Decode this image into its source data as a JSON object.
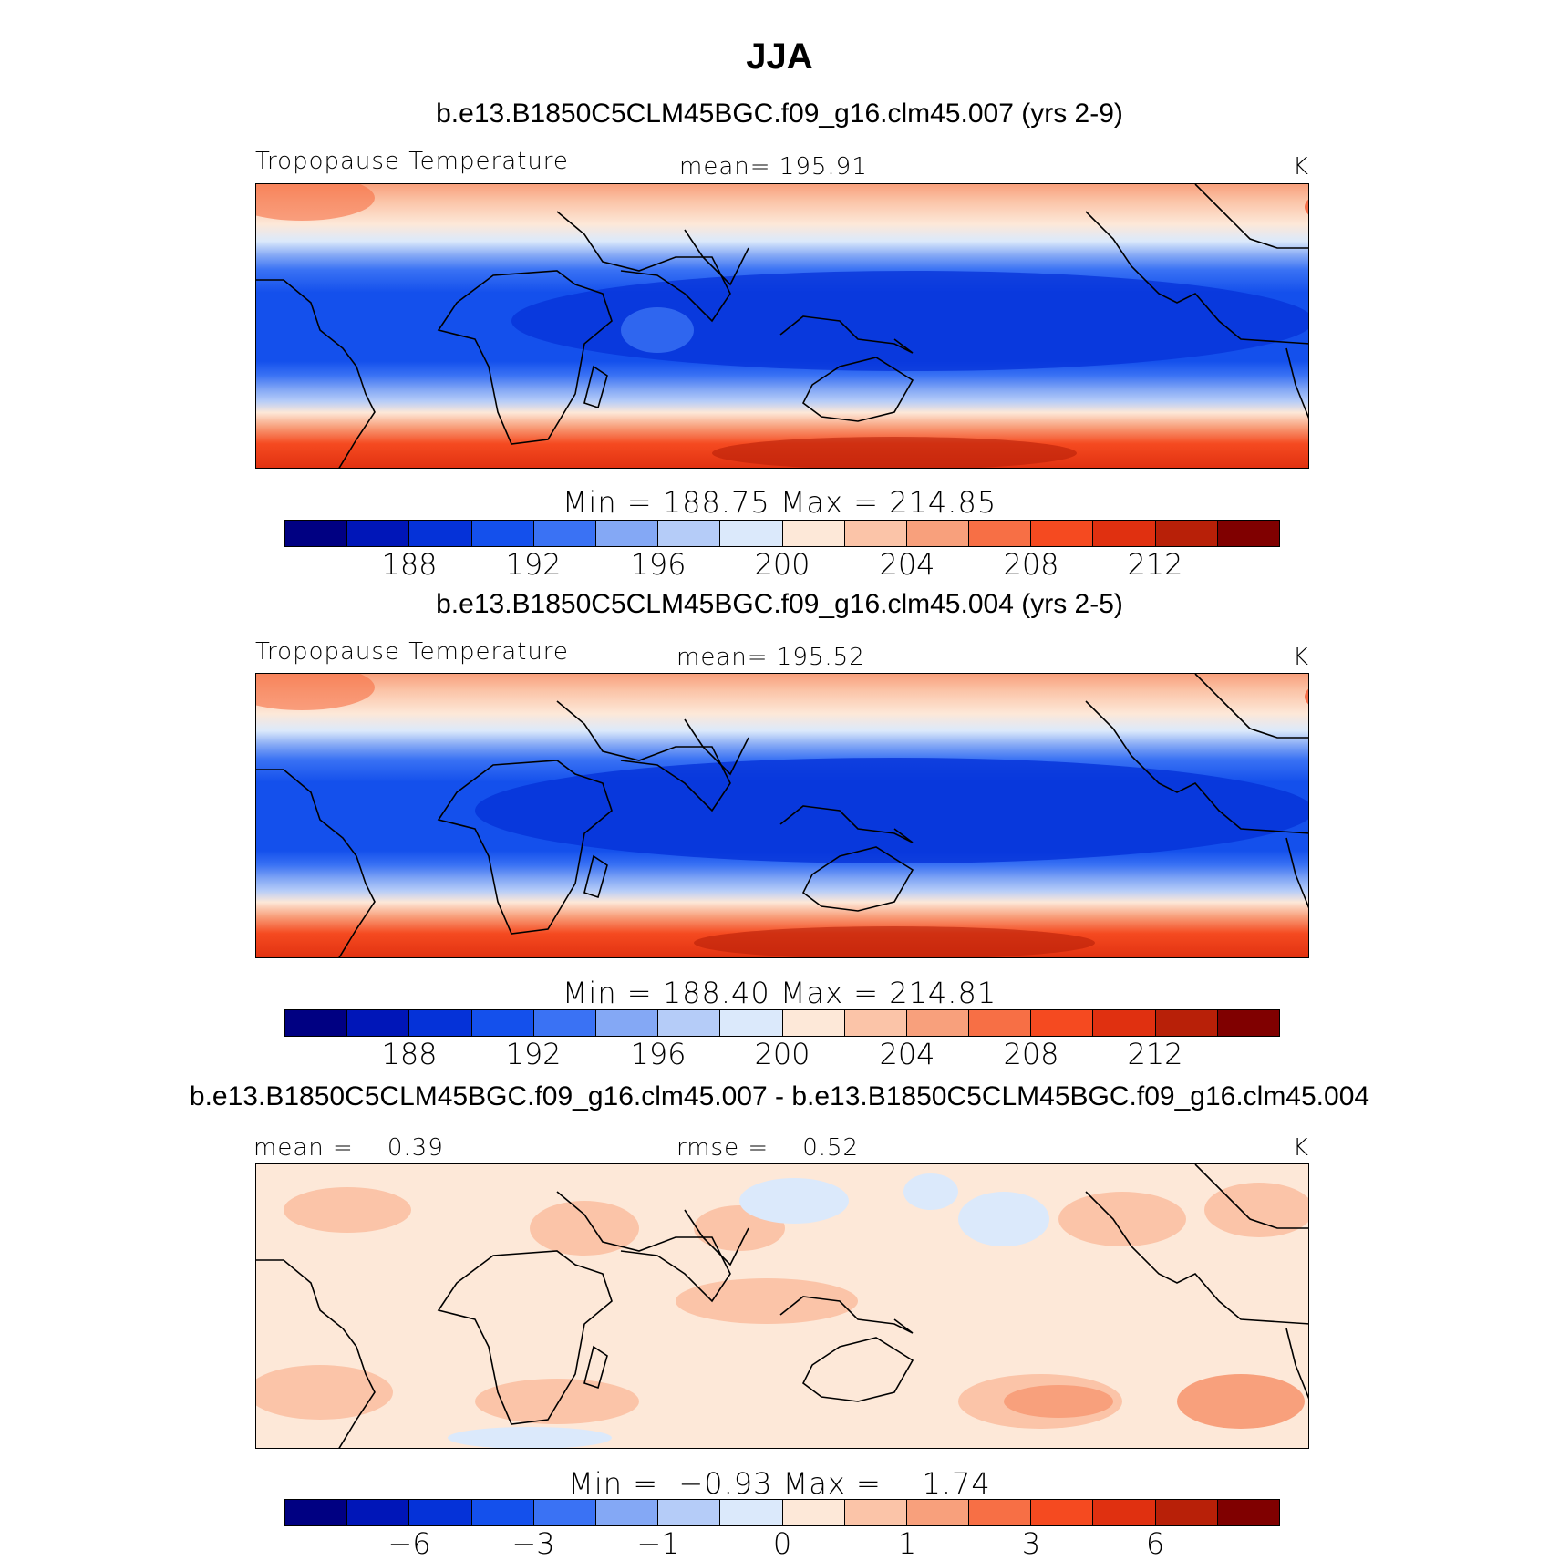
{
  "figure": {
    "title": "JJA"
  },
  "panels": [
    {
      "case_title": "b.e13.B1850C5CLM45BGC.f09_g16.clm45.007 (yrs 2-9)",
      "left_label": "Tropopause Temperature",
      "center_label": "mean= 195.91",
      "units": "K",
      "minmax": "Min = 188.75 Max = 214.85",
      "colorbar_ticks": [
        "188",
        "192",
        "196",
        "200",
        "204",
        "208",
        "212"
      ]
    },
    {
      "case_title": "b.e13.B1850C5CLM45BGC.f09_g16.clm45.004 (yrs 2-5)",
      "left_label": "Tropopause Temperature",
      "center_label": "mean= 195.52",
      "units": "K",
      "minmax": "Min = 188.40 Max = 214.81",
      "colorbar_ticks": [
        "188",
        "192",
        "196",
        "200",
        "204",
        "208",
        "212"
      ]
    },
    {
      "case_title": "b.e13.B1850C5CLM45BGC.f09_g16.clm45.007 - b.e13.B1850C5CLM45BGC.f09_g16.clm45.004",
      "left_label": "mean =    0.39",
      "center_label": "rmse =    0.52",
      "units": "K",
      "minmax": "Min =  −0.93 Max =    1.74",
      "colorbar_ticks": [
        "−6",
        "−3",
        "−1",
        "0",
        "1",
        "3",
        "6"
      ]
    }
  ],
  "colorbar": {
    "colors": [
      "#000082",
      "#0016b8",
      "#0532d8",
      "#1450ec",
      "#3a72f4",
      "#84a8f5",
      "#b5ccf8",
      "#dbe9fb",
      "#fde8d8",
      "#fbc4a8",
      "#f8a07c",
      "#f76f45",
      "#f54a20",
      "#e03010",
      "#b82008",
      "#800000"
    ]
  },
  "map": {
    "region": "Tropics (60S–60N)",
    "projection": "cylindrical equidistant",
    "coastlines": "Africa, Arabia, India, Southeast Asia, Australia, Americas"
  }
}
